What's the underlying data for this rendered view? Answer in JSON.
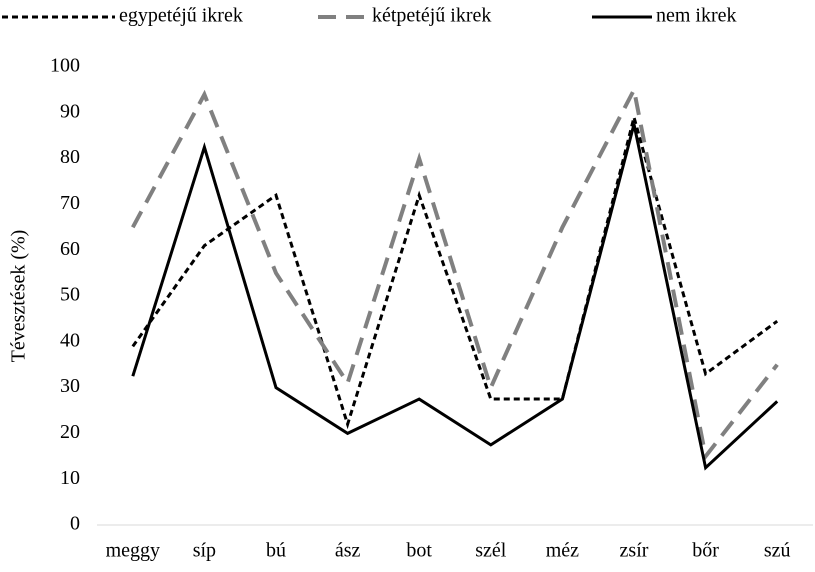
{
  "chart_data": {
    "type": "line",
    "y_label": "Tévesztések (%)",
    "categories": [
      "meggy",
      "síp",
      "bú",
      "ász",
      "bot",
      "szél",
      "méz",
      "zsír",
      "bőr",
      "szú"
    ],
    "series": [
      {
        "name": "egypetéjű ikrek",
        "color": "#000000",
        "dash": "short",
        "values": [
          39,
          61,
          72,
          22,
          72,
          27.5,
          27.5,
          89,
          33,
          44.5
        ]
      },
      {
        "name": "kétpetéjű ikrek",
        "color": "#808080",
        "dash": "long",
        "values": [
          65,
          94,
          55,
          31,
          80,
          30,
          65,
          95,
          15,
          35
        ]
      },
      {
        "name": "nem ikrek",
        "color": "#000000",
        "dash": "solid",
        "values": [
          32.5,
          82.5,
          30,
          20,
          27.5,
          17.5,
          27.5,
          87.5,
          12.5,
          27
        ]
      }
    ],
    "ylim": [
      0,
      100
    ],
    "yticks": [
      0,
      10,
      20,
      30,
      40,
      50,
      60,
      70,
      80,
      90,
      100
    ],
    "grid": false,
    "legend": "top"
  }
}
